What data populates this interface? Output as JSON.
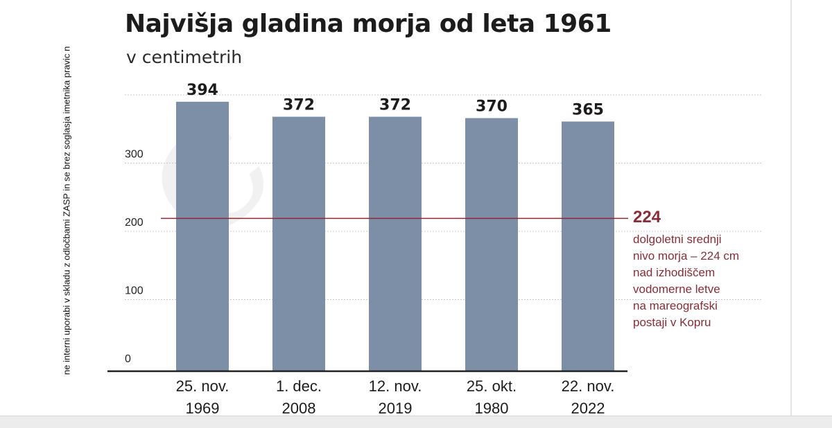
{
  "side_note": "ne interni uporabi v skladu z odločbami ZASP in se brez soglasja imetnika pravic n",
  "chart_data": {
    "type": "bar",
    "title": "Najvišja gladina morja od leta 1961",
    "subtitle": "v centimetrih",
    "categories": [
      "25. nov.\n1969",
      "1. dec.\n2008",
      "12. nov.\n2019",
      "25. okt.\n1980",
      "22. nov.\n2022"
    ],
    "values": [
      394,
      372,
      372,
      370,
      365
    ],
    "data_labels": [
      "394",
      "372",
      "372",
      "370",
      "365"
    ],
    "yticks": [
      0,
      100,
      200,
      300
    ],
    "ylim": [
      0,
      410
    ],
    "grid": true,
    "reference_line": {
      "value": 224,
      "label": "224",
      "note": "dolgoletni srednji\nnivo morja – 224 cm\nnad izhodiščem\nvodomerne letve\nna mareografski\npostaji v Kopru"
    },
    "colors": {
      "bar": "#7d8ea7",
      "reference": "#8c2b35",
      "grid": "#c8c8c8",
      "axis": "#222222"
    }
  }
}
